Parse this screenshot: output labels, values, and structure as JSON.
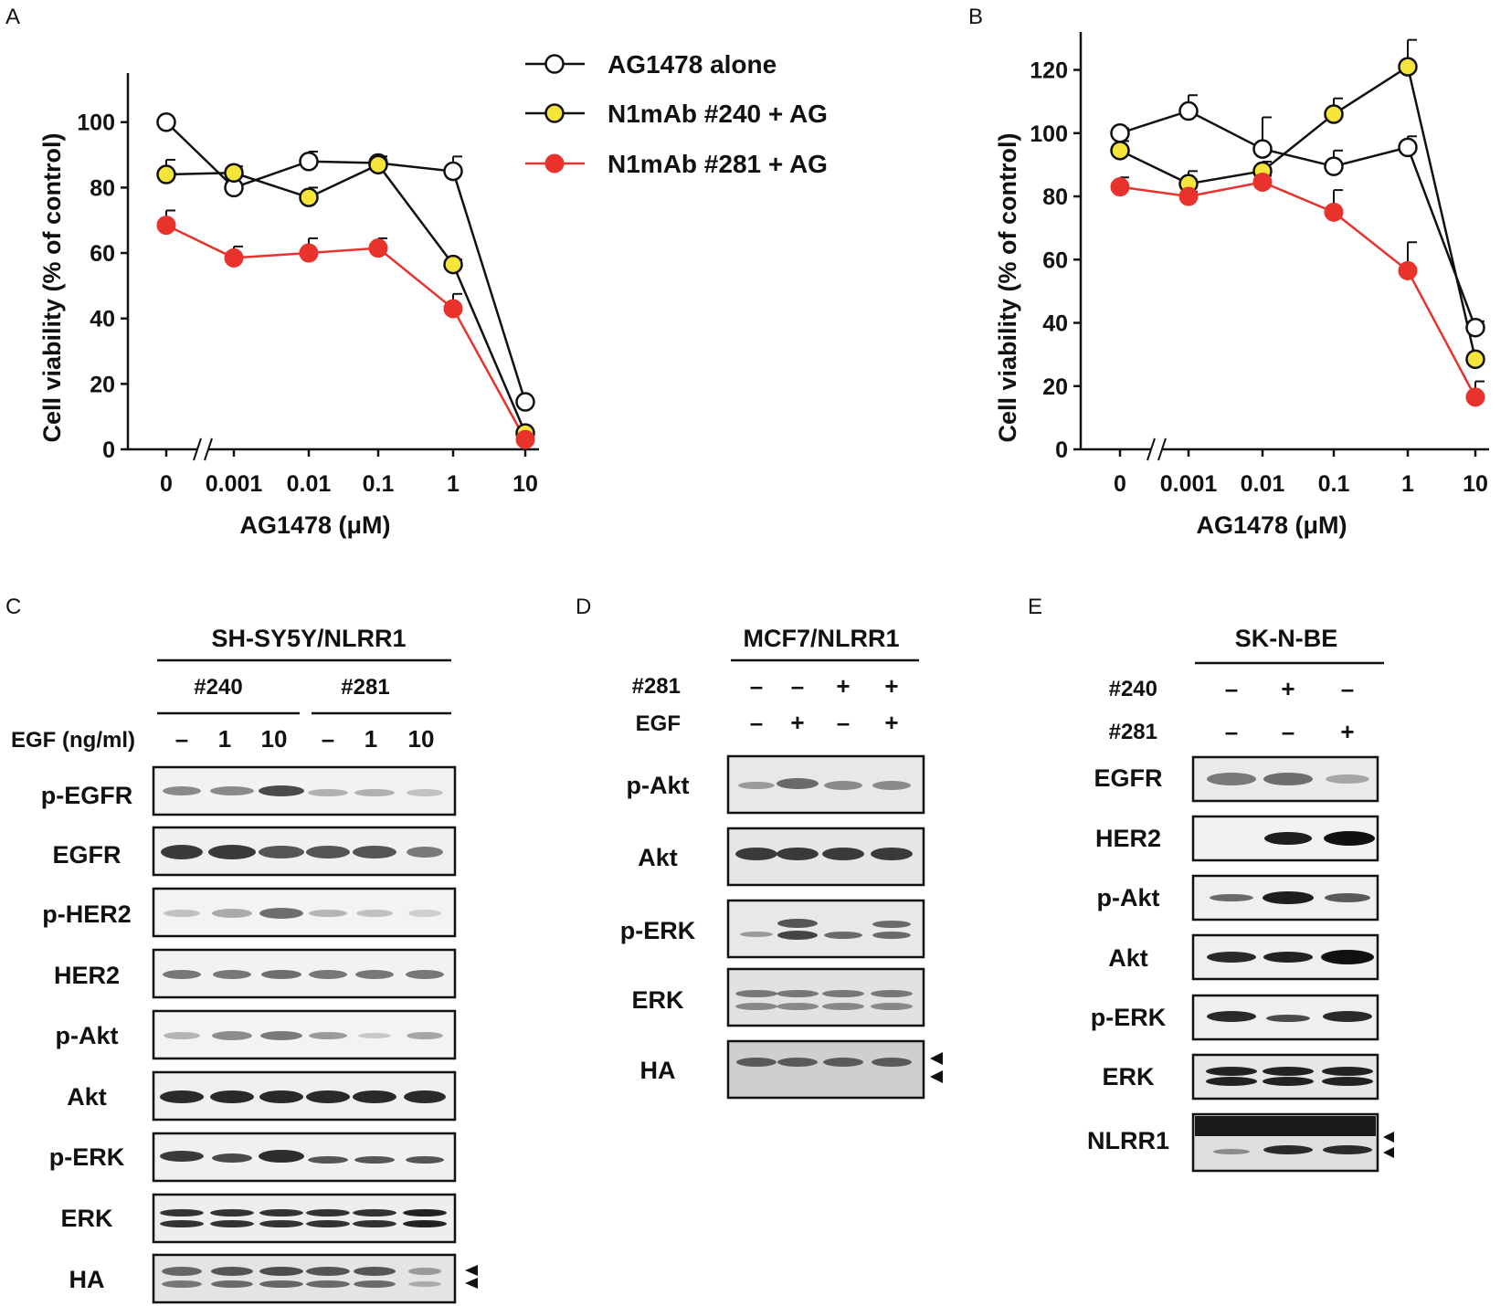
{
  "panels": {
    "A": "A",
    "B": "B",
    "C": "C",
    "D": "D",
    "E": "E"
  },
  "legend": [
    "AG1478 alone",
    "N1mAb #240 + AG",
    "N1mAb #281 + AG"
  ],
  "colors": {
    "alone": "#ffffff",
    "mab240": "#f5e43a",
    "mab281": "#e8322c",
    "stroke": "#111111"
  },
  "chart_data": [
    {
      "type": "line",
      "panel": "A",
      "categories": [
        "0",
        "0.001",
        "0.01",
        "0.1",
        "1",
        "10"
      ],
      "xlabel": "AG1478 (μM)",
      "ylabel": "Cell viability (% of control)",
      "ylim": [
        0,
        115
      ],
      "yticks": [
        0,
        20,
        40,
        60,
        80,
        100
      ],
      "axis_break_after": "0",
      "series": [
        {
          "name": "AG1478 alone",
          "values": [
            100,
            80,
            88,
            87.5,
            85,
            14.5
          ],
          "errors": [
            0,
            0,
            3,
            2,
            4.5,
            0
          ]
        },
        {
          "name": "N1mAb #240 + AG",
          "values": [
            84,
            84.5,
            77,
            87,
            56.5,
            5
          ],
          "errors": [
            4.5,
            2,
            3,
            2.5,
            1.5,
            0
          ]
        },
        {
          "name": "N1mAb #281 + AG",
          "values": [
            68.5,
            58.5,
            60,
            61.5,
            43,
            3
          ],
          "errors": [
            4.5,
            3.5,
            4.5,
            3,
            4.5,
            0
          ]
        }
      ]
    },
    {
      "type": "line",
      "panel": "B",
      "categories": [
        "0",
        "0.001",
        "0.01",
        "0.1",
        "1",
        "10"
      ],
      "xlabel": "AG1478 (μM)",
      "ylabel": "Cell viability (% of control)",
      "ylim": [
        0,
        132
      ],
      "yticks": [
        0,
        20,
        40,
        60,
        80,
        100,
        120
      ],
      "axis_break_after": "0",
      "series": [
        {
          "name": "AG1478 alone",
          "values": [
            100,
            107,
            95,
            89.5,
            95.5,
            38.5
          ],
          "errors": [
            1.5,
            5,
            10,
            5,
            3.5,
            2
          ]
        },
        {
          "name": "N1mAb #240 + AG",
          "values": [
            94.5,
            84,
            88,
            106,
            121,
            28.5
          ],
          "errors": [
            3,
            4,
            3,
            5,
            8.5,
            0
          ]
        },
        {
          "name": "N1mAb #281 + AG",
          "values": [
            83,
            80,
            84.5,
            75,
            56.5,
            16.5
          ],
          "errors": [
            3,
            1.5,
            2,
            7,
            9,
            5
          ]
        }
      ]
    }
  ],
  "blots": {
    "C": {
      "title": "SH-SY5Y/NLRR1",
      "groups": [
        "#240",
        "#281"
      ],
      "egf_label": "EGF (ng/ml)",
      "lanes": [
        "–",
        "1",
        "10",
        "–",
        "1",
        "10"
      ],
      "labels": [
        "p-EGFR",
        "EGFR",
        "p-HER2",
        "HER2",
        "p-Akt",
        "Akt",
        "p-ERK",
        "ERK",
        "HA"
      ]
    },
    "D": {
      "title": "MCF7/NLRR1",
      "row1_label": "#281",
      "row1": [
        "–",
        "–",
        "+",
        "+"
      ],
      "row2_label": "EGF",
      "row2": [
        "–",
        "+",
        "–",
        "+"
      ],
      "labels": [
        "p-Akt",
        "Akt",
        "p-ERK",
        "ERK",
        "HA"
      ]
    },
    "E": {
      "title": "SK-N-BE",
      "row1_label": "#240",
      "row1": [
        "–",
        "+",
        "–"
      ],
      "row2_label": "#281",
      "row2": [
        "–",
        "–",
        "+"
      ],
      "labels": [
        "EGFR",
        "HER2",
        "p-Akt",
        "Akt",
        "p-ERK",
        "ERK",
        "NLRR1"
      ]
    }
  }
}
